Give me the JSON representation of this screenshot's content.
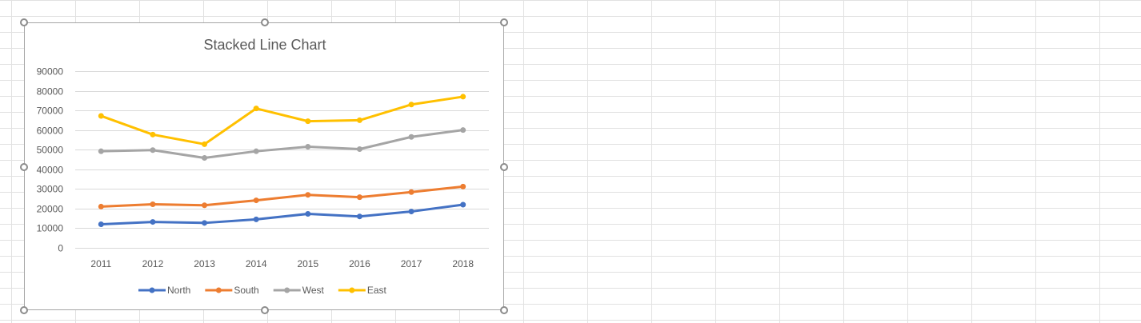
{
  "chart_data": {
    "type": "line",
    "title": "Stacked Line Chart",
    "xlabel": "",
    "ylabel": "",
    "categories": [
      "2011",
      "2012",
      "2013",
      "2014",
      "2015",
      "2016",
      "2017",
      "2018"
    ],
    "ylim": [
      0,
      90000
    ],
    "y_ticks": [
      "0",
      "10000",
      "20000",
      "30000",
      "40000",
      "50000",
      "60000",
      "70000",
      "80000",
      "90000"
    ],
    "grid": true,
    "legend_position": "bottom",
    "series": [
      {
        "name": "North",
        "color": "#4472c4",
        "values": [
          12000,
          13200,
          12700,
          14500,
          17300,
          16000,
          18500,
          22000
        ]
      },
      {
        "name": "South",
        "color": "#ed7d31",
        "values": [
          21000,
          22200,
          21700,
          24200,
          27000,
          25800,
          28400,
          31200
        ]
      },
      {
        "name": "West",
        "color": "#a5a5a5",
        "values": [
          49200,
          49800,
          45800,
          49200,
          51500,
          50300,
          56500,
          60000
        ]
      },
      {
        "name": "East",
        "color": "#ffc000",
        "values": [
          67200,
          57700,
          52800,
          71000,
          64500,
          65000,
          73000,
          77000
        ]
      }
    ]
  }
}
